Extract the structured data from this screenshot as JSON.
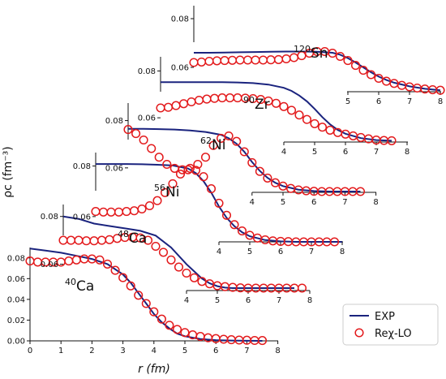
{
  "chart_data": {
    "type": "line",
    "ylabel": "ρc (fm⁻³)",
    "xlabel": "r (fm)",
    "legend": {
      "placement": "bottom-right",
      "entries": [
        {
          "label": "EXP",
          "marker": "line",
          "color": "#1a237e"
        },
        {
          "label": "Reχ-LO",
          "marker": "circle",
          "color": "#e31a1c"
        }
      ]
    },
    "panels": [
      {
        "nucleus_mass": "40",
        "nucleus_symbol": "Ca",
        "xlim": [
          0,
          8
        ],
        "ylim": [
          0,
          0.09
        ],
        "xticks": [
          "0",
          "1",
          "2",
          "3",
          "4",
          "5",
          "6",
          "7",
          "8"
        ],
        "yticks": [
          "0.00",
          "0.02",
          "0.04",
          "0.06",
          "0.08"
        ],
        "exp": {
          "x": [
            0,
            0.5,
            1,
            1.5,
            2,
            2.5,
            3,
            3.25,
            3.5,
            3.75,
            4,
            4.25,
            4.5,
            4.75,
            5,
            5.5,
            6,
            6.5,
            7,
            7.5
          ],
          "y": [
            0.089,
            0.087,
            0.085,
            0.082,
            0.079,
            0.074,
            0.064,
            0.056,
            0.046,
            0.036,
            0.026,
            0.018,
            0.012,
            0.007,
            0.0045,
            0.0018,
            0.0007,
            0.0003,
            0.0001,
            0.0
          ]
        },
        "rex": {
          "x": [
            0,
            0.25,
            0.5,
            0.75,
            1,
            1.25,
            1.5,
            1.75,
            2,
            2.25,
            2.5,
            2.75,
            3,
            3.25,
            3.5,
            3.75,
            4,
            4.25,
            4.5,
            4.75,
            5,
            5.25,
            5.5,
            5.75,
            6,
            6.25,
            6.5,
            6.75,
            7,
            7.25,
            7.5
          ],
          "y": [
            0.077,
            0.076,
            0.076,
            0.076,
            0.076,
            0.077,
            0.078,
            0.079,
            0.079,
            0.078,
            0.074,
            0.068,
            0.061,
            0.053,
            0.044,
            0.036,
            0.028,
            0.021,
            0.015,
            0.011,
            0.008,
            0.0058,
            0.0042,
            0.003,
            0.0022,
            0.0016,
            0.0011,
            0.0008,
            0.0006,
            0.0004,
            0.0003
          ]
        }
      },
      {
        "nucleus_mass": "48",
        "nucleus_symbol": "Ca",
        "xlim": [
          0,
          8
        ],
        "ylim": [
          0.05,
          0.085
        ],
        "xticks": [
          "4",
          "5",
          "6",
          "7",
          "8"
        ],
        "yticks": [
          "0.06",
          "0.08"
        ],
        "exp": {
          "x": [
            0,
            0.5,
            1,
            1.5,
            2,
            2.5,
            3,
            3.5,
            4,
            4.25,
            4.5,
            4.75,
            5,
            5.25,
            5.5,
            5.75,
            6,
            6.5,
            7,
            7.5
          ],
          "y": [
            0.08,
            0.079,
            0.077,
            0.076,
            0.075,
            0.074,
            0.072,
            0.067,
            0.06,
            0.057,
            0.054,
            0.052,
            0.0508,
            0.0502,
            0.05,
            0.05,
            0.05,
            0.05,
            0.05,
            0.05
          ]
        },
        "rex": {
          "x": [
            0,
            0.25,
            0.5,
            0.75,
            1,
            1.25,
            1.5,
            1.75,
            2,
            2.25,
            2.5,
            2.75,
            3,
            3.25,
            3.5,
            3.75,
            4,
            4.25,
            4.5,
            4.75,
            5,
            5.25,
            5.5,
            5.75,
            6,
            6.25,
            6.5,
            6.75,
            7,
            7.25,
            7.5,
            7.75
          ],
          "y": [
            0.07,
            0.07,
            0.07,
            0.0698,
            0.0698,
            0.07,
            0.0703,
            0.0708,
            0.0712,
            0.0713,
            0.071,
            0.07,
            0.0675,
            0.065,
            0.0618,
            0.0588,
            0.0563,
            0.0543,
            0.0528,
            0.0518,
            0.051,
            0.0506,
            0.0503,
            0.0501,
            0.05,
            0.05,
            0.05,
            0.05,
            0.05,
            0.05,
            0.05,
            0.05
          ]
        }
      },
      {
        "nucleus_mass": "56",
        "nucleus_symbol": "Ni",
        "xlim": [
          0,
          8
        ],
        "ylim": [
          0.05,
          0.085
        ],
        "xticks": [
          "4",
          "5",
          "6",
          "7",
          "8"
        ],
        "yticks": [
          "0.06",
          "0.08"
        ],
        "exp": {
          "x": [
            0,
            0.5,
            1,
            1.5,
            2,
            2.5,
            3,
            3.25,
            3.5,
            3.75,
            4,
            4.25,
            4.5,
            4.75,
            5,
            5.5,
            6,
            6.5,
            7,
            7.5,
            8
          ],
          "y": [
            0.0808,
            0.0808,
            0.0808,
            0.0807,
            0.0805,
            0.0802,
            0.079,
            0.0772,
            0.074,
            0.0695,
            0.064,
            0.0595,
            0.0562,
            0.0538,
            0.0522,
            0.0507,
            0.0502,
            0.05,
            0.05,
            0.05,
            0.05
          ]
        },
        "rex": {
          "x": [
            0,
            0.25,
            0.5,
            0.75,
            1,
            1.25,
            1.5,
            1.75,
            2,
            2.25,
            2.5,
            2.75,
            3,
            3.25,
            3.5,
            3.75,
            4,
            4.25,
            4.5,
            4.75,
            5,
            5.25,
            5.5,
            5.75,
            6,
            6.25,
            6.5,
            6.75,
            7,
            7.25,
            7.5,
            7.75
          ],
          "y": [
            0.062,
            0.0618,
            0.0618,
            0.0618,
            0.062,
            0.0623,
            0.063,
            0.0643,
            0.0663,
            0.0695,
            0.073,
            0.0768,
            0.0785,
            0.0783,
            0.0758,
            0.071,
            0.0653,
            0.0605,
            0.0568,
            0.0543,
            0.0526,
            0.0515,
            0.0508,
            0.0504,
            0.0502,
            0.0501,
            0.05,
            0.05,
            0.05,
            0.05,
            0.05,
            0.05
          ]
        }
      },
      {
        "nucleus_mass": "62",
        "nucleus_symbol": "Ni",
        "xlim": [
          0,
          8
        ],
        "ylim": [
          0.05,
          0.085
        ],
        "xticks": [
          "4",
          "5",
          "6",
          "7",
          "8"
        ],
        "yticks": [
          "0.06",
          "0.08"
        ],
        "exp": {
          "x": [
            0,
            0.5,
            1,
            1.5,
            2,
            2.5,
            3,
            3.25,
            3.5,
            3.75,
            4,
            4.25,
            4.5,
            4.75,
            5,
            5.5,
            6,
            6.5,
            7,
            7.5
          ],
          "y": [
            0.0765,
            0.0765,
            0.0764,
            0.0762,
            0.0758,
            0.0752,
            0.074,
            0.0725,
            0.0702,
            0.0668,
            0.0625,
            0.0587,
            0.0558,
            0.0537,
            0.0523,
            0.0508,
            0.0502,
            0.05,
            0.05,
            0.05
          ]
        },
        "rex": {
          "x": [
            0,
            0.25,
            0.5,
            0.75,
            1,
            1.25,
            1.5,
            1.75,
            2,
            2.25,
            2.5,
            2.75,
            3,
            3.25,
            3.5,
            3.75,
            4,
            4.25,
            4.5,
            4.75,
            5,
            5.25,
            5.5,
            5.75,
            6,
            6.25,
            6.5,
            6.75,
            7,
            7.25,
            7.5
          ],
          "y": [
            0.0762,
            0.0745,
            0.0718,
            0.0682,
            0.0645,
            0.0615,
            0.0598,
            0.0592,
            0.0598,
            0.0615,
            0.0645,
            0.0695,
            0.0725,
            0.0735,
            0.0712,
            0.0668,
            0.0622,
            0.0585,
            0.0557,
            0.0537,
            0.0523,
            0.0513,
            0.0507,
            0.0503,
            0.0501,
            0.05,
            0.05,
            0.05,
            0.05,
            0.05,
            0.05
          ]
        }
      },
      {
        "nucleus_mass": "90",
        "nucleus_symbol": "Zr",
        "xlim": [
          0,
          8
        ],
        "ylim": [
          0.05,
          0.085
        ],
        "xticks": [
          "4",
          "5",
          "6",
          "7",
          "8"
        ],
        "yticks": [
          "0.06",
          "0.08"
        ],
        "exp": {
          "x": [
            0,
            0.5,
            1,
            1.5,
            2,
            2.5,
            3,
            3.5,
            4,
            4.25,
            4.5,
            4.75,
            5,
            5.25,
            5.5,
            5.75,
            6,
            6.5,
            7,
            7.5
          ],
          "y": [
            0.0752,
            0.0752,
            0.0752,
            0.0752,
            0.0752,
            0.0751,
            0.0748,
            0.0742,
            0.0728,
            0.0715,
            0.0695,
            0.067,
            0.0638,
            0.0603,
            0.0572,
            0.0548,
            0.0532,
            0.0513,
            0.0505,
            0.0502
          ]
        },
        "rex": {
          "x": [
            0,
            0.25,
            0.5,
            0.75,
            1,
            1.25,
            1.5,
            1.75,
            2,
            2.25,
            2.5,
            2.75,
            3,
            3.25,
            3.5,
            3.75,
            4,
            4.25,
            4.5,
            4.75,
            5,
            5.25,
            5.5,
            5.75,
            6,
            6.25,
            6.5,
            6.75,
            7,
            7.25,
            7.5
          ],
          "y": [
            0.0642,
            0.0645,
            0.0652,
            0.066,
            0.0668,
            0.0675,
            0.068,
            0.0683,
            0.0685,
            0.0685,
            0.0685,
            0.0684,
            0.0682,
            0.0678,
            0.0672,
            0.0662,
            0.0648,
            0.0632,
            0.0612,
            0.0593,
            0.0575,
            0.056,
            0.0547,
            0.0537,
            0.053,
            0.0523,
            0.0516,
            0.051,
            0.0505,
            0.0503,
            0.0502
          ]
        }
      },
      {
        "nucleus_mass": "120",
        "nucleus_symbol": "Sn",
        "xlim": [
          0,
          8
        ],
        "ylim": [
          0.05,
          0.085
        ],
        "xticks": [
          "5",
          "6",
          "7",
          "8"
        ],
        "yticks": [
          "0.06",
          "0.08"
        ],
        "exp": {
          "x": [
            0,
            0.5,
            1,
            1.5,
            2,
            2.5,
            3,
            3.5,
            4,
            4.5,
            4.75,
            5,
            5.25,
            5.5,
            5.75,
            6,
            6.25,
            6.5,
            7,
            7.5,
            8
          ],
          "y": [
            0.066,
            0.066,
            0.0661,
            0.0662,
            0.0663,
            0.0664,
            0.0665,
            0.0665,
            0.0664,
            0.066,
            0.0652,
            0.0638,
            0.062,
            0.06,
            0.058,
            0.0562,
            0.0548,
            0.0537,
            0.0522,
            0.0512,
            0.0506
          ]
        },
        "rex": {
          "x": [
            0,
            0.25,
            0.5,
            0.75,
            1,
            1.25,
            1.5,
            1.75,
            2,
            2.25,
            2.5,
            2.75,
            3,
            3.25,
            3.5,
            3.75,
            4,
            4.25,
            4.5,
            4.75,
            5,
            5.25,
            5.5,
            5.75,
            6,
            6.25,
            6.5,
            6.75,
            7,
            7.25,
            7.5,
            7.75,
            8
          ],
          "y": [
            0.062,
            0.0622,
            0.0625,
            0.0627,
            0.0628,
            0.0629,
            0.063,
            0.063,
            0.063,
            0.063,
            0.0631,
            0.0632,
            0.0635,
            0.064,
            0.0648,
            0.0658,
            0.0665,
            0.0665,
            0.0658,
            0.0645,
            0.0628,
            0.0608,
            0.0588,
            0.057,
            0.0555,
            0.0543,
            0.0534,
            0.0526,
            0.052,
            0.0515,
            0.0511,
            0.0508,
            0.0506
          ]
        }
      }
    ]
  }
}
